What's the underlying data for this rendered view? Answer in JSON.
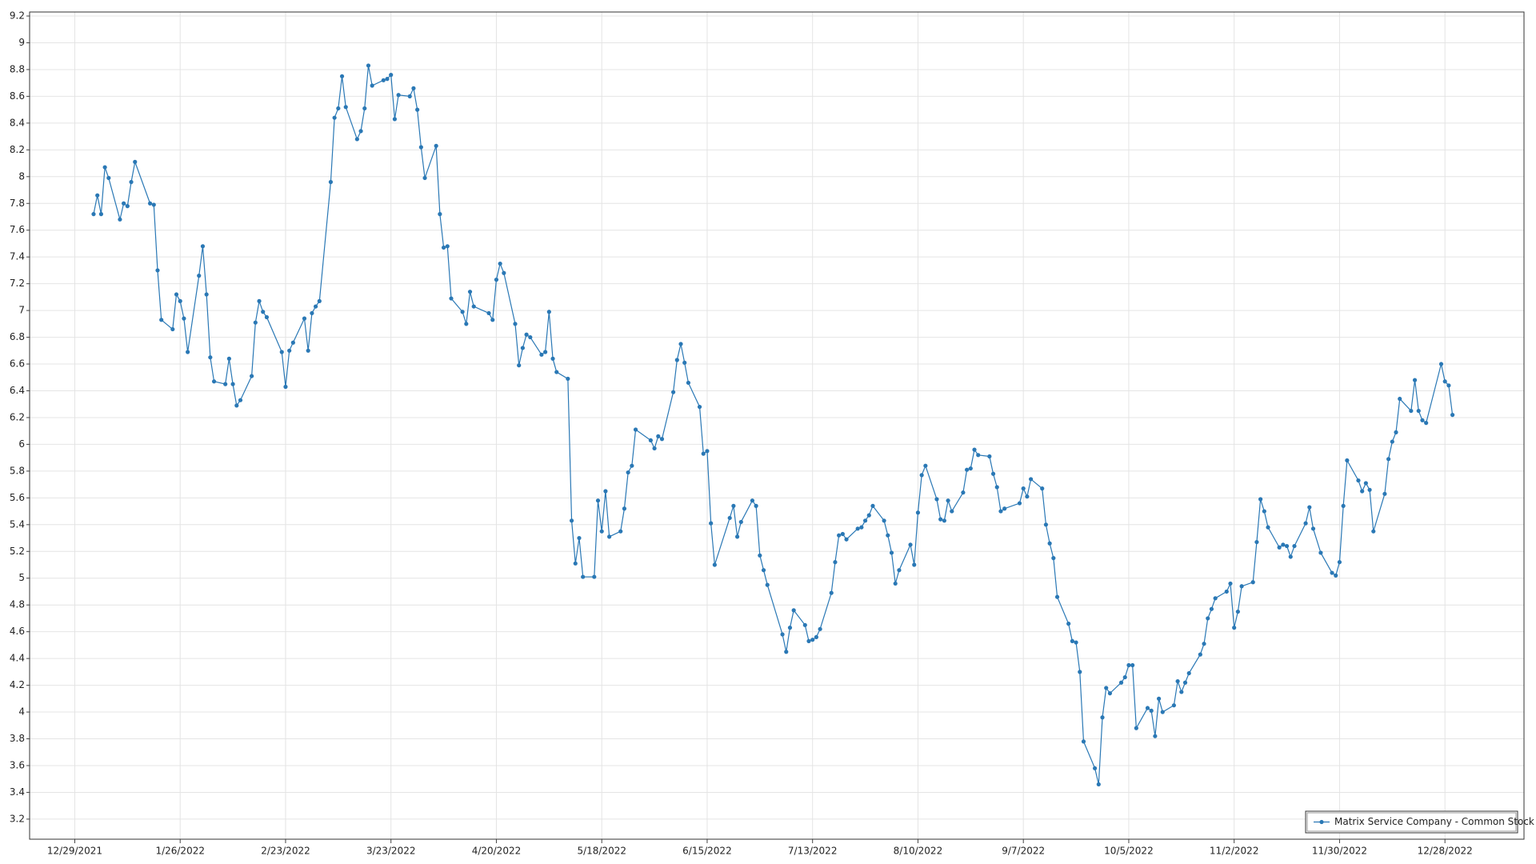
{
  "chart_data": {
    "type": "line",
    "x": [
      "2022-01-03",
      "2022-01-04",
      "2022-01-05",
      "2022-01-06",
      "2022-01-07",
      "2022-01-10",
      "2022-01-11",
      "2022-01-12",
      "2022-01-13",
      "2022-01-14",
      "2022-01-18",
      "2022-01-19",
      "2022-01-20",
      "2022-01-21",
      "2022-01-24",
      "2022-01-25",
      "2022-01-26",
      "2022-01-27",
      "2022-01-28",
      "2022-01-31",
      "2022-02-01",
      "2022-02-02",
      "2022-02-03",
      "2022-02-04",
      "2022-02-07",
      "2022-02-08",
      "2022-02-09",
      "2022-02-10",
      "2022-02-11",
      "2022-02-14",
      "2022-02-15",
      "2022-02-16",
      "2022-02-17",
      "2022-02-18",
      "2022-02-22",
      "2022-02-23",
      "2022-02-24",
      "2022-02-25",
      "2022-02-28",
      "2022-03-01",
      "2022-03-02",
      "2022-03-03",
      "2022-03-04",
      "2022-03-07",
      "2022-03-08",
      "2022-03-09",
      "2022-03-10",
      "2022-03-11",
      "2022-03-14",
      "2022-03-15",
      "2022-03-16",
      "2022-03-17",
      "2022-03-18",
      "2022-03-21",
      "2022-03-22",
      "2022-03-23",
      "2022-03-24",
      "2022-03-25",
      "2022-03-28",
      "2022-03-29",
      "2022-03-30",
      "2022-03-31",
      "2022-04-01",
      "2022-04-04",
      "2022-04-05",
      "2022-04-06",
      "2022-04-07",
      "2022-04-08",
      "2022-04-11",
      "2022-04-12",
      "2022-04-13",
      "2022-04-14",
      "2022-04-18",
      "2022-04-19",
      "2022-04-20",
      "2022-04-21",
      "2022-04-22",
      "2022-04-25",
      "2022-04-26",
      "2022-04-27",
      "2022-04-28",
      "2022-04-29",
      "2022-05-02",
      "2022-05-03",
      "2022-05-04",
      "2022-05-05",
      "2022-05-06",
      "2022-05-09",
      "2022-05-10",
      "2022-05-11",
      "2022-05-12",
      "2022-05-13",
      "2022-05-16",
      "2022-05-17",
      "2022-05-18",
      "2022-05-19",
      "2022-05-20",
      "2022-05-23",
      "2022-05-24",
      "2022-05-25",
      "2022-05-26",
      "2022-05-27",
      "2022-05-31",
      "2022-06-01",
      "2022-06-02",
      "2022-06-03",
      "2022-06-06",
      "2022-06-07",
      "2022-06-08",
      "2022-06-09",
      "2022-06-10",
      "2022-06-13",
      "2022-06-14",
      "2022-06-15",
      "2022-06-16",
      "2022-06-17",
      "2022-06-21",
      "2022-06-22",
      "2022-06-23",
      "2022-06-24",
      "2022-06-27",
      "2022-06-28",
      "2022-06-29",
      "2022-06-30",
      "2022-07-01",
      "2022-07-05",
      "2022-07-06",
      "2022-07-07",
      "2022-07-08",
      "2022-07-11",
      "2022-07-12",
      "2022-07-13",
      "2022-07-14",
      "2022-07-15",
      "2022-07-18",
      "2022-07-19",
      "2022-07-20",
      "2022-07-21",
      "2022-07-22",
      "2022-07-25",
      "2022-07-26",
      "2022-07-27",
      "2022-07-28",
      "2022-07-29",
      "2022-08-01",
      "2022-08-02",
      "2022-08-03",
      "2022-08-04",
      "2022-08-05",
      "2022-08-08",
      "2022-08-09",
      "2022-08-10",
      "2022-08-11",
      "2022-08-12",
      "2022-08-15",
      "2022-08-16",
      "2022-08-17",
      "2022-08-18",
      "2022-08-19",
      "2022-08-22",
      "2022-08-23",
      "2022-08-24",
      "2022-08-25",
      "2022-08-26",
      "2022-08-29",
      "2022-08-30",
      "2022-08-31",
      "2022-09-01",
      "2022-09-02",
      "2022-09-06",
      "2022-09-07",
      "2022-09-08",
      "2022-09-09",
      "2022-09-12",
      "2022-09-13",
      "2022-09-14",
      "2022-09-15",
      "2022-09-16",
      "2022-09-19",
      "2022-09-20",
      "2022-09-21",
      "2022-09-22",
      "2022-09-23",
      "2022-09-26",
      "2022-09-27",
      "2022-09-28",
      "2022-09-29",
      "2022-09-30",
      "2022-10-03",
      "2022-10-04",
      "2022-10-05",
      "2022-10-06",
      "2022-10-07",
      "2022-10-10",
      "2022-10-11",
      "2022-10-12",
      "2022-10-13",
      "2022-10-14",
      "2022-10-17",
      "2022-10-18",
      "2022-10-19",
      "2022-10-20",
      "2022-10-21",
      "2022-10-24",
      "2022-10-25",
      "2022-10-26",
      "2022-10-27",
      "2022-10-28",
      "2022-10-31",
      "2022-11-01",
      "2022-11-02",
      "2022-11-03",
      "2022-11-04",
      "2022-11-07",
      "2022-11-08",
      "2022-11-09",
      "2022-11-10",
      "2022-11-11",
      "2022-11-14",
      "2022-11-15",
      "2022-11-16",
      "2022-11-17",
      "2022-11-18",
      "2022-11-21",
      "2022-11-22",
      "2022-11-23",
      "2022-11-25",
      "2022-11-28",
      "2022-11-29",
      "2022-11-30",
      "2022-12-01",
      "2022-12-02",
      "2022-12-05",
      "2022-12-06",
      "2022-12-07",
      "2022-12-08",
      "2022-12-09",
      "2022-12-12",
      "2022-12-13",
      "2022-12-14",
      "2022-12-15",
      "2022-12-16",
      "2022-12-19",
      "2022-12-20",
      "2022-12-21",
      "2022-12-22",
      "2022-12-23",
      "2022-12-27",
      "2022-12-28",
      "2022-12-29",
      "2022-12-30"
    ],
    "series": [
      {
        "name": "Matrix Service Company - Common Stock",
        "color": "#2a78b5",
        "values": [
          7.72,
          7.86,
          7.72,
          8.07,
          7.99,
          7.68,
          7.8,
          7.78,
          7.96,
          8.11,
          7.8,
          7.79,
          7.3,
          6.93,
          6.86,
          7.12,
          7.07,
          6.94,
          6.69,
          7.26,
          7.48,
          7.12,
          6.65,
          6.47,
          6.45,
          6.64,
          6.45,
          6.29,
          6.33,
          6.51,
          6.91,
          7.07,
          6.99,
          6.95,
          6.69,
          6.43,
          6.7,
          6.76,
          6.94,
          6.7,
          6.98,
          7.03,
          7.07,
          7.96,
          8.44,
          8.51,
          8.75,
          8.52,
          8.28,
          8.34,
          8.51,
          8.83,
          8.68,
          8.72,
          8.73,
          8.76,
          8.43,
          8.61,
          8.6,
          8.66,
          8.5,
          8.22,
          7.99,
          8.23,
          7.72,
          7.47,
          7.48,
          7.09,
          6.99,
          6.9,
          7.14,
          7.03,
          6.98,
          6.93,
          7.23,
          7.35,
          7.28,
          6.9,
          6.59,
          6.72,
          6.82,
          6.8,
          6.67,
          6.69,
          6.99,
          6.64,
          6.54,
          6.49,
          5.43,
          5.11,
          5.3,
          5.01,
          5.01,
          5.58,
          5.35,
          5.65,
          5.31,
          5.35,
          5.52,
          5.79,
          5.84,
          6.11,
          6.03,
          5.97,
          6.06,
          6.04,
          6.39,
          6.63,
          6.75,
          6.61,
          6.46,
          6.28,
          5.93,
          5.95,
          5.41,
          5.1,
          5.45,
          5.54,
          5.31,
          5.42,
          5.58,
          5.54,
          5.17,
          5.06,
          4.95,
          4.58,
          4.45,
          4.63,
          4.76,
          4.65,
          4.53,
          4.54,
          4.56,
          4.62,
          4.89,
          5.12,
          5.32,
          5.33,
          5.29,
          5.37,
          5.38,
          5.43,
          5.47,
          5.54,
          5.43,
          5.32,
          5.19,
          4.96,
          5.06,
          5.25,
          5.1,
          5.49,
          5.77,
          5.84,
          5.59,
          5.44,
          5.43,
          5.58,
          5.5,
          5.64,
          5.81,
          5.82,
          5.96,
          5.92,
          5.91,
          5.78,
          5.68,
          5.5,
          5.52,
          5.56,
          5.67,
          5.61,
          5.74,
          5.67,
          5.4,
          5.26,
          5.15,
          4.86,
          4.66,
          4.53,
          4.52,
          4.3,
          3.78,
          3.58,
          3.46,
          3.96,
          4.18,
          4.14,
          4.22,
          4.26,
          4.35,
          4.35,
          3.88,
          4.03,
          4.01,
          3.82,
          4.1,
          4.0,
          4.05,
          4.23,
          4.15,
          4.22,
          4.29,
          4.43,
          4.51,
          4.7,
          4.77,
          4.85,
          4.9,
          4.96,
          4.63,
          4.75,
          4.94,
          4.97,
          5.27,
          5.59,
          5.5,
          5.38,
          5.23,
          5.25,
          5.24,
          5.16,
          5.24,
          5.41,
          5.53,
          5.37,
          5.19,
          5.04,
          5.02,
          5.12,
          5.54,
          5.88,
          5.73,
          5.65,
          5.71,
          5.66,
          5.35,
          5.63,
          5.89,
          6.02,
          6.09,
          6.34,
          6.25,
          6.48,
          6.25,
          6.18,
          6.16,
          6.6,
          6.47,
          6.44,
          6.22
        ]
      }
    ],
    "xlim": [
      "2021-12-17",
      "2023-01-18"
    ],
    "xticks": [
      {
        "value": "2021-12-29",
        "label": "12/29/2021"
      },
      {
        "value": "2022-01-26",
        "label": "1/26/2022"
      },
      {
        "value": "2022-02-23",
        "label": "2/23/2022"
      },
      {
        "value": "2022-03-23",
        "label": "3/23/2022"
      },
      {
        "value": "2022-04-20",
        "label": "4/20/2022"
      },
      {
        "value": "2022-05-18",
        "label": "5/18/2022"
      },
      {
        "value": "2022-06-15",
        "label": "6/15/2022"
      },
      {
        "value": "2022-07-13",
        "label": "7/13/2022"
      },
      {
        "value": "2022-08-10",
        "label": "8/10/2022"
      },
      {
        "value": "2022-09-07",
        "label": "9/7/2022"
      },
      {
        "value": "2022-10-05",
        "label": "10/5/2022"
      },
      {
        "value": "2022-11-02",
        "label": "11/2/2022"
      },
      {
        "value": "2022-11-30",
        "label": "11/30/2022"
      },
      {
        "value": "2022-12-28",
        "label": "12/28/2022"
      }
    ],
    "ylim": [
      3.05,
      9.23
    ],
    "yticks": [
      3.2,
      3.4,
      3.6,
      3.8,
      4,
      4.2,
      4.4,
      4.6,
      4.8,
      5,
      5.2,
      5.4,
      5.6,
      5.8,
      6,
      6.2,
      6.4,
      6.6,
      6.8,
      7,
      7.2,
      7.4,
      7.6,
      7.8,
      8,
      8.2,
      8.4,
      8.6,
      8.8,
      9,
      9.2
    ],
    "grid": true,
    "markers": true,
    "legend": "lower-right"
  }
}
